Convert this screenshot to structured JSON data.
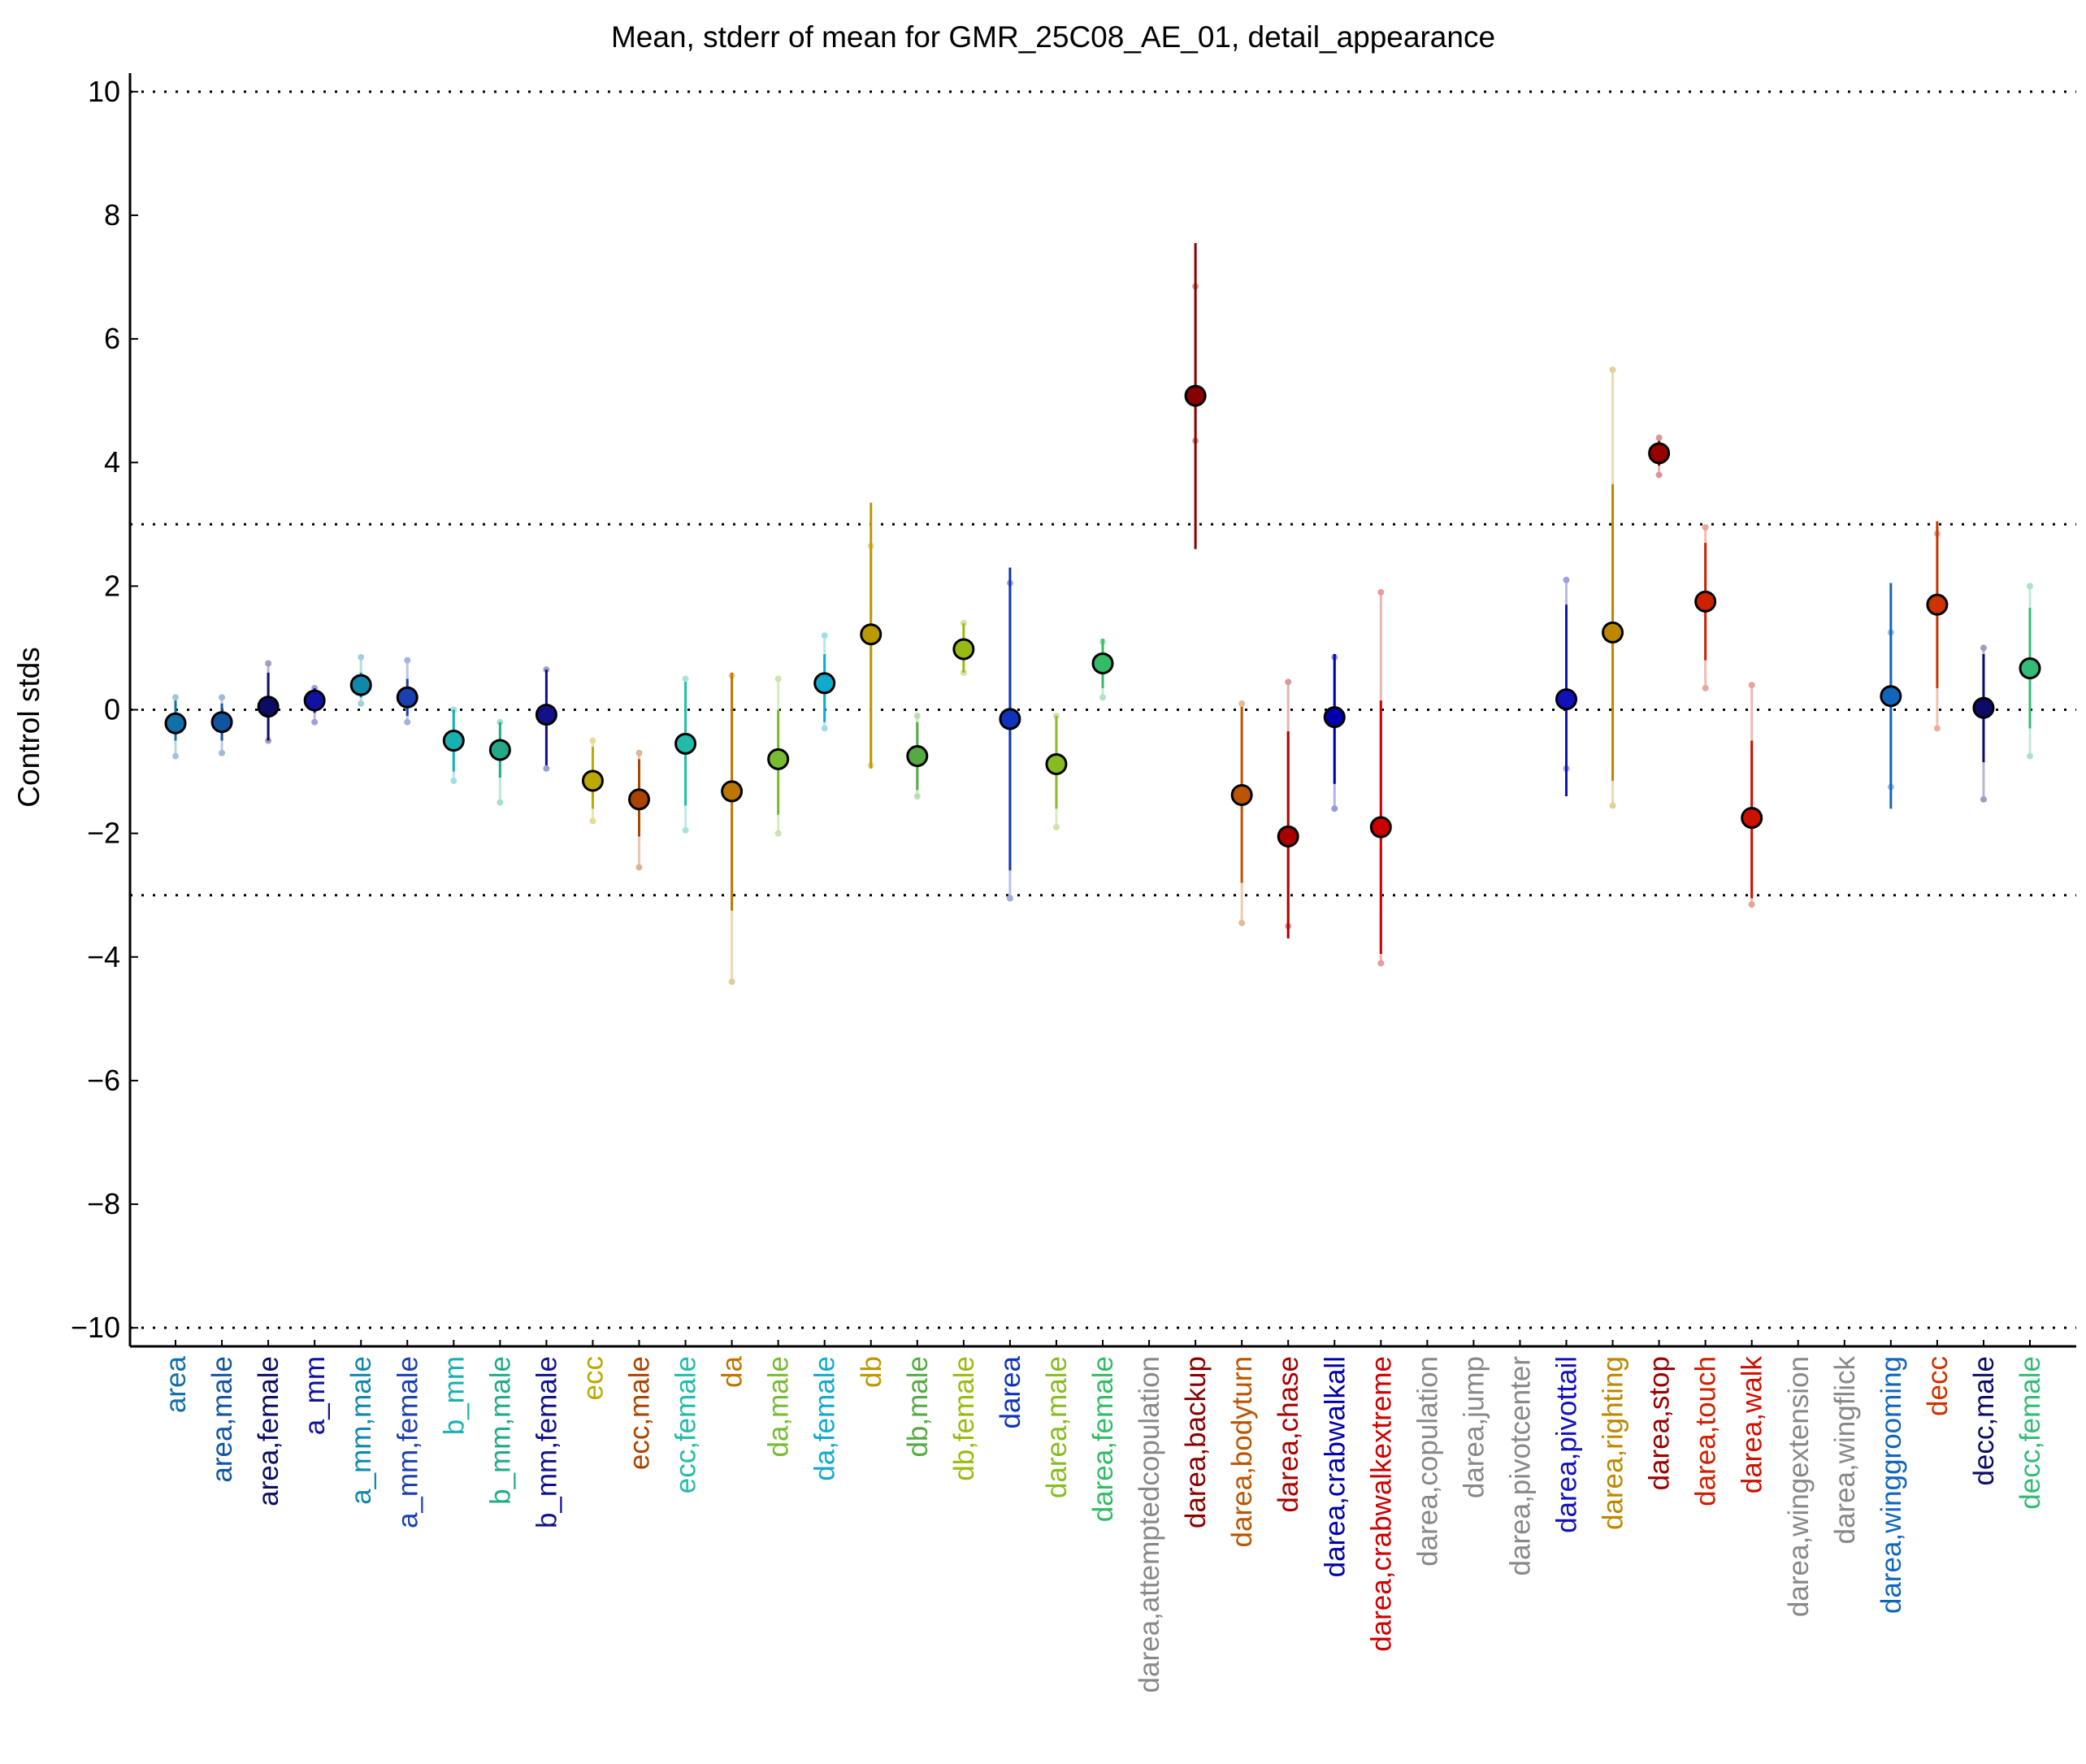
{
  "chart_data": {
    "type": "scatter",
    "title": "Mean, stderr of mean for GMR_25C08_AE_01, detail_appearance",
    "xlabel": "",
    "ylabel": "Control stds",
    "ylim": [
      -10.3,
      10.3
    ],
    "yticks": [
      10,
      8,
      6,
      4,
      2,
      0,
      -2,
      -4,
      -6,
      -8,
      -10
    ],
    "ytick_labels": [
      "10",
      "8",
      "6",
      "4",
      "2",
      "0",
      "−2",
      "−4",
      "−6",
      "−8",
      "−10"
    ],
    "reference_lines": [
      10,
      3,
      0,
      -3,
      -10
    ],
    "grid": false,
    "categories": [
      {
        "label": "area",
        "color": "#1170aa",
        "mean": -0.22,
        "err_low": -0.5,
        "err_high": 0.15,
        "range_low": -0.75,
        "range_high": 0.2
      },
      {
        "label": "area,male",
        "color": "#1155a0",
        "mean": -0.2,
        "err_low": -0.5,
        "err_high": 0.1,
        "range_low": -0.7,
        "range_high": 0.2
      },
      {
        "label": "area,female",
        "color": "#0c0c66",
        "mean": 0.05,
        "err_low": -0.5,
        "err_high": 0.6,
        "range_low": -0.5,
        "range_high": 0.75
      },
      {
        "label": "a_mm",
        "color": "#1212a0",
        "mean": 0.15,
        "err_low": -0.05,
        "err_high": 0.35,
        "range_low": -0.2,
        "range_high": 0.35
      },
      {
        "label": "a_mm,male",
        "color": "#1188aa",
        "mean": 0.4,
        "err_low": 0.2,
        "err_high": 0.6,
        "range_low": 0.1,
        "range_high": 0.85
      },
      {
        "label": "a_mm,female",
        "color": "#1a3fb0",
        "mean": 0.2,
        "err_low": -0.1,
        "err_high": 0.5,
        "range_low": -0.2,
        "range_high": 0.8
      },
      {
        "label": "b_mm",
        "color": "#1ab0b0",
        "mean": -0.5,
        "err_low": -1.0,
        "err_high": 0.0,
        "range_low": -1.15,
        "range_high": 0.0
      },
      {
        "label": "b_mm,male",
        "color": "#22aa88",
        "mean": -0.65,
        "err_low": -1.1,
        "err_high": -0.2,
        "range_low": -1.5,
        "range_high": -0.2
      },
      {
        "label": "b_mm,female",
        "color": "#11118a",
        "mean": -0.08,
        "err_low": -0.9,
        "err_high": 0.65,
        "range_low": -0.95,
        "range_high": 0.65
      },
      {
        "label": "ecc",
        "color": "#bba800",
        "mean": -1.15,
        "err_low": -1.6,
        "err_high": -0.6,
        "range_low": -1.8,
        "range_high": -0.5
      },
      {
        "label": "ecc,male",
        "color": "#aa4400",
        "mean": -1.45,
        "err_low": -2.05,
        "err_high": -0.8,
        "range_low": -2.55,
        "range_high": -0.7
      },
      {
        "label": "ecc,female",
        "color": "#22bbaa",
        "mean": -0.55,
        "err_low": -1.55,
        "err_high": 0.45,
        "range_low": -1.95,
        "range_high": 0.5
      },
      {
        "label": "da",
        "color": "#bb7700",
        "mean": -1.32,
        "err_low": -3.25,
        "err_high": 0.6,
        "range_low": -4.4,
        "range_high": 0.55
      },
      {
        "label": "da,male",
        "color": "#77bb33",
        "mean": -0.8,
        "err_low": -1.7,
        "err_high": 0.0,
        "range_low": -2.0,
        "range_high": 0.5
      },
      {
        "label": "da,female",
        "color": "#11aacc",
        "mean": 0.43,
        "err_low": -0.2,
        "err_high": 0.9,
        "range_low": -0.3,
        "range_high": 1.2
      },
      {
        "label": "db",
        "color": "#bb9900",
        "mean": 1.22,
        "err_low": -0.95,
        "err_high": 3.35,
        "range_low": -0.9,
        "range_high": 2.65
      },
      {
        "label": "db,male",
        "color": "#55aa44",
        "mean": -0.75,
        "err_low": -1.3,
        "err_high": -0.2,
        "range_low": -1.4,
        "range_high": -0.1
      },
      {
        "label": "db,female",
        "color": "#99bb11",
        "mean": 0.98,
        "err_low": 0.6,
        "err_high": 1.4,
        "range_low": 0.6,
        "range_high": 1.4
      },
      {
        "label": "darea",
        "color": "#1133bb",
        "mean": -0.15,
        "err_low": -2.6,
        "err_high": 2.3,
        "range_low": -3.05,
        "range_high": 2.05
      },
      {
        "label": "darea,male",
        "color": "#88bb22",
        "mean": -0.88,
        "err_low": -1.6,
        "err_high": -0.1,
        "range_low": -1.9,
        "range_high": -0.1
      },
      {
        "label": "darea,female",
        "color": "#33bb66",
        "mean": 0.75,
        "err_low": 0.35,
        "err_high": 1.15,
        "range_low": 0.2,
        "range_high": 1.1
      },
      {
        "label": "darea,attemptedcopulation",
        "color": "#888888",
        "mean": null
      },
      {
        "label": "darea,backup",
        "color": "#880000",
        "mean": 5.08,
        "err_low": 2.6,
        "err_high": 7.55,
        "range_low": 4.35,
        "range_high": 6.85
      },
      {
        "label": "darea,bodyturn",
        "color": "#bb5500",
        "mean": -1.38,
        "err_low": -2.8,
        "err_high": 0.05,
        "range_low": -3.45,
        "range_high": 0.1
      },
      {
        "label": "darea,chase",
        "color": "#aa0000",
        "mean": -2.05,
        "err_low": -3.7,
        "err_high": -0.35,
        "range_low": -3.5,
        "range_high": 0.45
      },
      {
        "label": "darea,crabwalkall",
        "color": "#0000aa",
        "mean": -0.12,
        "err_low": -1.2,
        "err_high": 0.9,
        "range_low": -1.6,
        "range_high": 0.85
      },
      {
        "label": "darea,crabwalkextreme",
        "color": "#cc0000",
        "mean": -1.9,
        "err_low": -3.95,
        "err_high": 0.15,
        "range_low": -4.1,
        "range_high": 1.9
      },
      {
        "label": "darea,copulation",
        "color": "#888888",
        "mean": null
      },
      {
        "label": "darea,jump",
        "color": "#888888",
        "mean": null
      },
      {
        "label": "darea,pivotcenter",
        "color": "#888888",
        "mean": null
      },
      {
        "label": "darea,pivottail",
        "color": "#1111bb",
        "mean": 0.17,
        "err_low": -1.4,
        "err_high": 1.7,
        "range_low": -0.95,
        "range_high": 2.1
      },
      {
        "label": "darea,righting",
        "color": "#bb8800",
        "mean": 1.25,
        "err_low": -1.15,
        "err_high": 3.65,
        "range_low": -1.55,
        "range_high": 5.5
      },
      {
        "label": "darea,stop",
        "color": "#990000",
        "mean": 4.15,
        "err_low": 3.95,
        "err_high": 4.35,
        "range_low": 3.8,
        "range_high": 4.4
      },
      {
        "label": "darea,touch",
        "color": "#cc2200",
        "mean": 1.75,
        "err_low": 0.8,
        "err_high": 2.7,
        "range_low": 0.35,
        "range_high": 2.95
      },
      {
        "label": "darea,walk",
        "color": "#cc1100",
        "mean": -1.75,
        "err_low": -3.05,
        "err_high": -0.5,
        "range_low": -3.15,
        "range_high": 0.4
      },
      {
        "label": "darea,wingextension",
        "color": "#888888",
        "mean": null
      },
      {
        "label": "darea,wingflick",
        "color": "#888888",
        "mean": null
      },
      {
        "label": "darea,winggrooming",
        "color": "#1166bb",
        "mean": 0.22,
        "err_low": -1.6,
        "err_high": 2.05,
        "range_low": -1.25,
        "range_high": 1.25
      },
      {
        "label": "decc",
        "color": "#cc3300",
        "mean": 1.7,
        "err_low": 0.35,
        "err_high": 3.05,
        "range_low": -0.3,
        "range_high": 2.85
      },
      {
        "label": "decc,male",
        "color": "#0c0c66",
        "mean": 0.03,
        "err_low": -0.85,
        "err_high": 0.9,
        "range_low": -1.45,
        "range_high": 1.0
      },
      {
        "label": "decc,female",
        "color": "#33bb77",
        "mean": 0.67,
        "err_low": -0.3,
        "err_high": 1.65,
        "range_low": -0.75,
        "range_high": 2.0
      }
    ]
  }
}
